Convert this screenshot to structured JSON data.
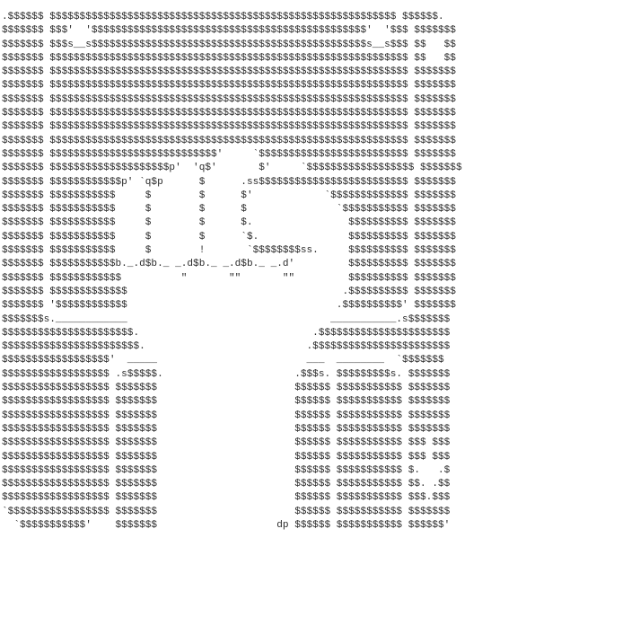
{
  "art": {
    "lines": [
      ".$$$$$$ $$$$$$$$$$$$$$$$$$$$$$$$$$$$$$$$$$$$$$$$$$$$$$$$$$$$$$$$$$ $$$$$$.",
      "$$$$$$$ $$$'  '$$$$$$$$$$$$$$$$$$$$$$$$$$$$$$$$$$$$$$$$$$$$$$'  '$$$ $$$$$$$",
      "$$$$$$$ $$$s__s$$$$$$$$$$$$$$$$$$$$$$$$$$$$$$$$$$$$$$$$$$$$$$s__s$$$ $$   $$",
      "$$$$$$$ $$$$$$$$$$$$$$$$$$$$$$$$$$$$$$$$$$$$$$$$$$$$$$$$$$$$$$$$$$$$ $$   $$",
      "$$$$$$$ $$$$$$$$$$$$$$$$$$$$$$$$$$$$$$$$$$$$$$$$$$$$$$$$$$$$$$$$$$$$ $$$$$$$",
      "$$$$$$$ $$$$$$$$$$$$$$$$$$$$$$$$$$$$$$$$$$$$$$$$$$$$$$$$$$$$$$$$$$$$ $$$$$$$",
      "$$$$$$$ $$$$$$$$$$$$$$$$$$$$$$$$$$$$$$$$$$$$$$$$$$$$$$$$$$$$$$$$$$$$ $$$$$$$",
      "$$$$$$$ $$$$$$$$$$$$$$$$$$$$$$$$$$$$$$$$$$$$$$$$$$$$$$$$$$$$$$$$$$$$ $$$$$$$",
      "$$$$$$$ $$$$$$$$$$$$$$$$$$$$$$$$$$$$$$$$$$$$$$$$$$$$$$$$$$$$$$$$$$$$ $$$$$$$",
      "$$$$$$$ $$$$$$$$$$$$$$$$$$$$$$$$$$$$$$$$$$$$$$$$$$$$$$$$$$$$$$$$$$$$ $$$$$$$",
      "$$$$$$$ $$$$$$$$$$$$$$$$$$$$$$$$$$$$'     `$$$$$$$$$$$$$$$$$$$$$$$$$ $$$$$$$",
      "$$$$$$$ $$$$$$$$$$$$$$$$$$$$p'  'q$'       $'     `$$$$$$$$$$$$$$$$$$ $$$$$$$",
      "$$$$$$$ $$$$$$$$$$$$p' `q$p      $      .ss$$$$$$$$$$$$$$$$$$$$$$$$$ $$$$$$$",
      "$$$$$$$ $$$$$$$$$$$     $        $      $'            `$$$$$$$$$$$$$ $$$$$$$",
      "$$$$$$$ $$$$$$$$$$$     $        $      $               `$$$$$$$$$$$ $$$$$$$",
      "$$$$$$$ $$$$$$$$$$$     $        $      $.                $$$$$$$$$$ $$$$$$$",
      "$$$$$$$ $$$$$$$$$$$     $        $      `$.               $$$$$$$$$$ $$$$$$$",
      "$$$$$$$ $$$$$$$$$$$     $        !       `$$$$$$$$ss.     $$$$$$$$$$ $$$$$$$",
      "$$$$$$$ $$$$$$$$$$$b._.d$b._ _.d$b._ _.d$b._ _.d'         $$$$$$$$$$ $$$$$$$",
      "$$$$$$$ $$$$$$$$$$$$          \"       \"\"       \"\"         $$$$$$$$$$ $$$$$$$",
      "$$$$$$$ $$$$$$$$$$$$$                                    .$$$$$$$$$$ $$$$$$$",
      "$$$$$$$ '$$$$$$$$$$$$                                   .$$$$$$$$$$' $$$$$$$",
      "$$$$$$$s.____________                                  ___________.s$$$$$$$",
      "$$$$$$$$$$$$$$$$$$$$$$.                             .$$$$$$$$$$$$$$$$$$$$$$",
      "$$$$$$$$$$$$$$$$$$$$$$$.                           .$$$$$$$$$$$$$$$$$$$$$$$",
      "$$$$$$$$$$$$$$$$$$'  _____                         ___  ________  `$$$$$$$",
      "$$$$$$$$$$$$$$$$$$ .s$$$$$.                      .$$$s. $$$$$$$$$s. $$$$$$$",
      "$$$$$$$$$$$$$$$$$$ $$$$$$$                       $$$$$$ $$$$$$$$$$$ $$$$$$$",
      "$$$$$$$$$$$$$$$$$$ $$$$$$$                       $$$$$$ $$$$$$$$$$$ $$$$$$$",
      "$$$$$$$$$$$$$$$$$$ $$$$$$$                       $$$$$$ $$$$$$$$$$$ $$$$$$$",
      "$$$$$$$$$$$$$$$$$$ $$$$$$$                       $$$$$$ $$$$$$$$$$$ $$$$$$$",
      "$$$$$$$$$$$$$$$$$$ $$$$$$$                       $$$$$$ $$$$$$$$$$$ $$$ $$$",
      "$$$$$$$$$$$$$$$$$$ $$$$$$$                       $$$$$$ $$$$$$$$$$$ $$$ $$$",
      "$$$$$$$$$$$$$$$$$$ $$$$$$$                       $$$$$$ $$$$$$$$$$$ $.   .$",
      "$$$$$$$$$$$$$$$$$$ $$$$$$$                       $$$$$$ $$$$$$$$$$$ $$. .$$",
      "$$$$$$$$$$$$$$$$$$ $$$$$$$                       $$$$$$ $$$$$$$$$$$ $$$.$$$",
      "`$$$$$$$$$$$$$$$$$ $$$$$$$                       $$$$$$ $$$$$$$$$$$ $$$$$$$",
      "  `$$$$$$$$$$$'    $$$$$$$                    dp $$$$$$ $$$$$$$$$$$ $$$$$$'"
    ]
  }
}
